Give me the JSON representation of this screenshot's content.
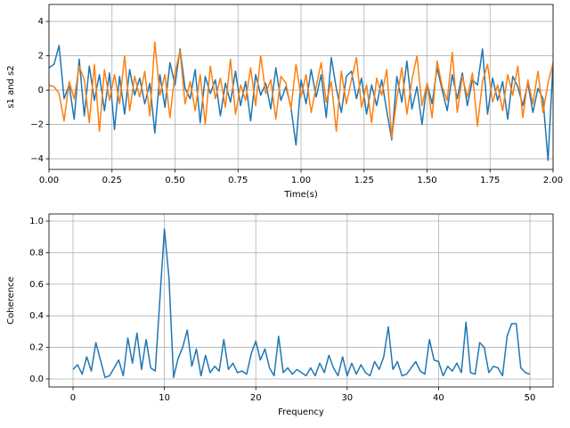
{
  "chart_data": [
    {
      "type": "line",
      "xlabel": "Time(s)",
      "ylabel": "s1 and s2",
      "grid": true,
      "x": [
        0,
        0.02,
        0.04,
        0.06,
        0.08,
        0.1,
        0.12,
        0.14,
        0.16,
        0.18,
        0.2,
        0.22,
        0.24,
        0.26,
        0.28,
        0.3,
        0.32,
        0.34,
        0.36,
        0.38,
        0.4,
        0.42,
        0.44,
        0.46,
        0.48,
        0.5,
        0.52,
        0.54,
        0.56,
        0.58,
        0.6,
        0.62,
        0.64,
        0.66,
        0.68,
        0.7,
        0.72,
        0.74,
        0.76,
        0.78,
        0.8,
        0.82,
        0.84,
        0.86,
        0.88,
        0.9,
        0.92,
        0.94,
        0.96,
        0.98,
        1,
        1.02,
        1.04,
        1.06,
        1.08,
        1.1,
        1.12,
        1.14,
        1.16,
        1.18,
        1.2,
        1.22,
        1.24,
        1.26,
        1.28,
        1.3,
        1.32,
        1.34,
        1.36,
        1.38,
        1.4,
        1.42,
        1.44,
        1.46,
        1.48,
        1.5,
        1.52,
        1.54,
        1.56,
        1.58,
        1.6,
        1.62,
        1.64,
        1.66,
        1.68,
        1.7,
        1.72,
        1.74,
        1.76,
        1.78,
        1.8,
        1.82,
        1.84,
        1.86,
        1.88,
        1.9,
        1.92,
        1.94,
        1.96,
        1.98,
        2
      ],
      "series": [
        {
          "color": "#1f77b4",
          "values": [
            1.3,
            1.5,
            2.6,
            -0.5,
            0.3,
            -1.7,
            1.8,
            -1.5,
            1.4,
            -0.6,
            0.9,
            -1.2,
            1.0,
            -2.3,
            0.8,
            -1.4,
            1.2,
            -0.3,
            0.7,
            -0.8,
            0.4,
            -2.5,
            0.9,
            -1.0,
            1.6,
            0.3,
            2.4,
            0.1,
            -0.5,
            1.2,
            -1.9,
            0.8,
            -0.2,
            0.6,
            -1.5,
            0.4,
            -0.7,
            1.1,
            -0.9,
            0.5,
            -1.8,
            0.9,
            -0.3,
            0.4,
            -1.1,
            1.3,
            -0.6,
            0.2,
            -1.0,
            -3.2,
            0.6,
            -0.8,
            1.2,
            -0.4,
            0.9,
            -1.6,
            1.9,
            0.1,
            -1.3,
            0.8,
            1.1,
            -0.5,
            0.7,
            -1.4,
            0.3,
            -0.9,
            0.6,
            -1.2,
            -2.9,
            0.8,
            -0.7,
            1.7,
            -1.1,
            0.2,
            -2.0,
            0.4,
            -0.8,
            1.3,
            0.0,
            -1.2,
            0.9,
            -0.5,
            1.0,
            -0.9,
            0.6,
            0.3,
            2.4,
            -1.4,
            0.7,
            -0.6,
            0.5,
            -1.7,
            0.8,
            0.2,
            -0.9,
            0.4,
            -1.3,
            0.1,
            -0.5,
            -4.1,
            1.6
          ]
        },
        {
          "color": "#ff7f0e",
          "values": [
            0.3,
            0.2,
            -0.2,
            -1.8,
            0.5,
            -0.5,
            1.4,
            0.6,
            -1.9,
            1.5,
            -2.4,
            1.2,
            -0.6,
            0.9,
            -0.8,
            2.0,
            -1.2,
            0.8,
            -0.4,
            1.1,
            -1.5,
            2.8,
            -0.3,
            0.9,
            -1.6,
            1.0,
            2.3,
            -0.8,
            0.5,
            -1.2,
            0.9,
            -2.0,
            1.4,
            -0.5,
            0.7,
            -1.0,
            1.8,
            -1.4,
            0.3,
            -0.6,
            1.3,
            -0.9,
            2.0,
            -0.2,
            0.6,
            -1.7,
            0.8,
            0.4,
            -1.1,
            1.5,
            -0.4,
            0.9,
            -1.3,
            0.2,
            1.6,
            -0.7,
            0.5,
            -2.4,
            1.1,
            -0.8,
            0.6,
            1.9,
            -1.0,
            0.3,
            -1.9,
            0.7,
            -0.3,
            1.2,
            -2.8,
            -0.5,
            1.3,
            -1.4,
            0.6,
            2.0,
            -0.9,
            0.4,
            -1.6,
            1.7,
            0.2,
            -0.6,
            2.2,
            -1.3,
            0.8,
            -0.4,
            1.0,
            -2.1,
            0.5,
            1.5,
            -0.7,
            0.3,
            -1.2,
            0.9,
            -0.3,
            1.4,
            -1.6,
            0.6,
            -0.8,
            1.1,
            -1.3,
            0.4,
            1.6
          ]
        }
      ],
      "xlim": [
        0,
        2
      ],
      "xticks": [
        {
          "value": 0,
          "label": "0.00"
        },
        {
          "value": 0.25,
          "label": "0.25"
        },
        {
          "value": 0.5,
          "label": "0.50"
        },
        {
          "value": 0.75,
          "label": "0.75"
        },
        {
          "value": 1,
          "label": "1.00"
        },
        {
          "value": 1.25,
          "label": "1.25"
        },
        {
          "value": 1.5,
          "label": "1.50"
        },
        {
          "value": 1.75,
          "label": "1.75"
        },
        {
          "value": 2,
          "label": "2.00"
        }
      ],
      "ylim": [
        -4.62,
        4.99
      ],
      "yticks": [
        {
          "value": -4,
          "label": "−4"
        },
        {
          "value": -2,
          "label": "−2"
        },
        0,
        2,
        4
      ]
    },
    {
      "type": "line",
      "xlabel": "Frequency",
      "ylabel": "Coherence",
      "grid": true,
      "x": [
        0,
        0.5,
        1,
        1.5,
        2,
        2.5,
        3,
        3.5,
        4,
        4.5,
        5,
        5.5,
        6,
        6.5,
        7,
        7.5,
        8,
        8.5,
        9,
        9.5,
        10,
        10.5,
        11,
        11.5,
        12,
        12.5,
        13,
        13.5,
        14,
        14.5,
        15,
        15.5,
        16,
        16.5,
        17,
        17.5,
        18,
        18.5,
        19,
        19.5,
        20,
        20.5,
        21,
        21.5,
        22,
        22.5,
        23,
        23.5,
        24,
        24.5,
        25,
        25.5,
        26,
        26.5,
        27,
        27.5,
        28,
        28.5,
        29,
        29.5,
        30,
        30.5,
        31,
        31.5,
        32,
        32.5,
        33,
        33.5,
        34,
        34.5,
        35,
        35.5,
        36,
        36.5,
        37,
        37.5,
        38,
        38.5,
        39,
        39.5,
        40,
        40.5,
        41,
        41.5,
        42,
        42.5,
        43,
        43.5,
        44,
        44.5,
        45,
        45.5,
        46,
        46.5,
        47,
        47.5,
        48,
        48.5,
        49,
        49.5,
        50
      ],
      "series": [
        {
          "color": "#1f77b4",
          "values": [
            0.06,
            0.09,
            0.03,
            0.14,
            0.05,
            0.23,
            0.12,
            0.01,
            0.02,
            0.07,
            0.12,
            0.02,
            0.26,
            0.1,
            0.29,
            0.06,
            0.25,
            0.07,
            0.05,
            0.5,
            0.95,
            0.64,
            0.01,
            0.13,
            0.2,
            0.31,
            0.08,
            0.19,
            0.02,
            0.15,
            0.04,
            0.08,
            0.05,
            0.25,
            0.06,
            0.1,
            0.04,
            0.05,
            0.03,
            0.16,
            0.24,
            0.12,
            0.19,
            0.07,
            0.02,
            0.27,
            0.04,
            0.07,
            0.03,
            0.06,
            0.04,
            0.02,
            0.07,
            0.02,
            0.1,
            0.04,
            0.15,
            0.07,
            0.02,
            0.14,
            0.02,
            0.1,
            0.03,
            0.09,
            0.04,
            0.02,
            0.11,
            0.06,
            0.14,
            0.33,
            0.06,
            0.11,
            0.02,
            0.03,
            0.07,
            0.11,
            0.05,
            0.03,
            0.25,
            0.12,
            0.11,
            0.02,
            0.08,
            0.05,
            0.1,
            0.04,
            0.36,
            0.04,
            0.03,
            0.23,
            0.2,
            0.04,
            0.08,
            0.07,
            0.02,
            0.27,
            0.35,
            0.35,
            0.07,
            0.04,
            0.03
          ]
        }
      ],
      "xlim": [
        -2.63,
        52.53
      ],
      "xticks": [
        0,
        10,
        20,
        30,
        40,
        50
      ],
      "ylim": [
        -0.051,
        1.045
      ],
      "yticks": [
        {
          "value": 0,
          "label": "0.0"
        },
        {
          "value": 0.2,
          "label": "0.2"
        },
        {
          "value": 0.4,
          "label": "0.4"
        },
        {
          "value": 0.6,
          "label": "0.6"
        },
        {
          "value": 0.8,
          "label": "0.8"
        },
        {
          "value": 1,
          "label": "1.0"
        }
      ]
    }
  ]
}
